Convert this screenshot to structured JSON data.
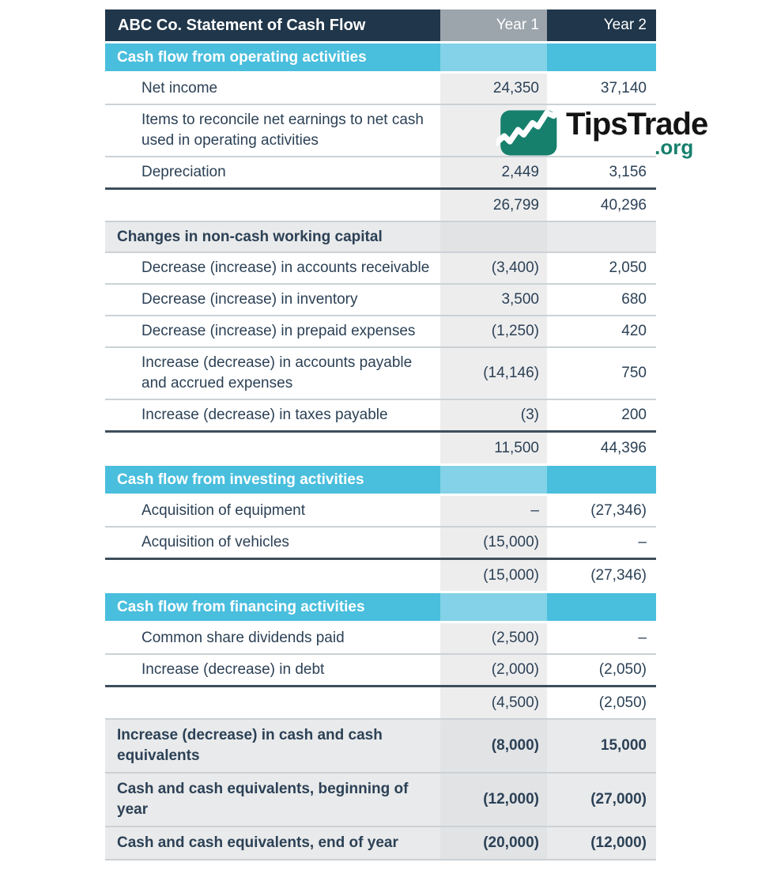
{
  "theme": {
    "navy": "#20364a",
    "colheadgray": "#9ca4ac",
    "blue": "#49bedd",
    "bluelight": "#83d2e7",
    "stripe": "#ededee",
    "stripedark": "#e1e3e5",
    "rowgray": "#e9eaeb",
    "text": "#2c4156",
    "thinline": "#ccd1d5",
    "thickline": "#3e4e5b",
    "teal": "#17806d"
  },
  "table": {
    "title": "ABC Co. Statement of Cash Flow",
    "col_year1": "Year 1",
    "col_year2": "Year 2",
    "rows": [
      {
        "type": "section",
        "label": "Cash flow from operating activities",
        "y1": "",
        "y2": "",
        "border": "none"
      },
      {
        "type": "data",
        "label": "Net income",
        "y1": "24,350",
        "y2": "37,140",
        "border": "thin"
      },
      {
        "type": "data",
        "label": "Items to reconcile net earnings to net cash used in operating activities",
        "y1": "",
        "y2": "",
        "border": "thin"
      },
      {
        "type": "data",
        "label": "Depreciation",
        "y1": "2,449",
        "y2": "3,156",
        "border": "thick"
      },
      {
        "type": "subtotal",
        "label": "",
        "y1": "26,799",
        "y2": "40,296",
        "border": "thin"
      },
      {
        "type": "subheader",
        "label": "Changes in non-cash working capital",
        "y1": "",
        "y2": "",
        "border": "thin"
      },
      {
        "type": "data",
        "label": "Decrease (increase) in accounts receivable",
        "y1": "(3,400)",
        "y2": "2,050",
        "border": "thin"
      },
      {
        "type": "data",
        "label": "Decrease (increase) in inventory",
        "y1": "3,500",
        "y2": "680",
        "border": "thin"
      },
      {
        "type": "data",
        "label": "Decrease (increase) in prepaid expenses",
        "y1": "(1,250)",
        "y2": "420",
        "border": "thin"
      },
      {
        "type": "data",
        "label": "Increase (decrease) in accounts payable and accrued expenses",
        "y1": "(14,146)",
        "y2": "750",
        "border": "thin"
      },
      {
        "type": "data",
        "label": "Increase (decrease) in taxes payable",
        "y1": "(3)",
        "y2": "200",
        "border": "thick"
      },
      {
        "type": "subtotal",
        "label": "",
        "y1": "11,500",
        "y2": "44,396",
        "border": "none"
      },
      {
        "type": "section",
        "label": "Cash flow from investing activities",
        "y1": "",
        "y2": "",
        "border": "none"
      },
      {
        "type": "data",
        "label": "Acquisition of equipment",
        "y1": "–",
        "y2": "(27,346)",
        "border": "thin"
      },
      {
        "type": "data",
        "label": "Acquisition of vehicles",
        "y1": "(15,000)",
        "y2": "–",
        "border": "thick"
      },
      {
        "type": "subtotal",
        "label": "",
        "y1": "(15,000)",
        "y2": "(27,346)",
        "border": "none"
      },
      {
        "type": "section",
        "label": "Cash flow from financing activities",
        "y1": "",
        "y2": "",
        "border": "none"
      },
      {
        "type": "data",
        "label": "Common share dividends paid",
        "y1": "(2,500)",
        "y2": "–",
        "border": "thin"
      },
      {
        "type": "data",
        "label": "Increase (decrease) in debt",
        "y1": "(2,000)",
        "y2": "(2,050)",
        "border": "thick"
      },
      {
        "type": "subtotal",
        "label": "",
        "y1": "(4,500)",
        "y2": "(2,050)",
        "border": "thin"
      },
      {
        "type": "bold",
        "label": "Increase (decrease) in cash and cash equivalents",
        "y1": "(8,000)",
        "y2": "15,000",
        "border": "thin"
      },
      {
        "type": "bold",
        "label": "Cash and cash equivalents, beginning of year",
        "y1": "(12,000)",
        "y2": "(27,000)",
        "border": "thin"
      },
      {
        "type": "bold",
        "label": "Cash and cash equivalents, end of year",
        "y1": "(20,000)",
        "y2": "(12,000)",
        "border": "thin"
      }
    ]
  },
  "logo": {
    "name": "TipsTrade",
    "tld": ".org"
  }
}
